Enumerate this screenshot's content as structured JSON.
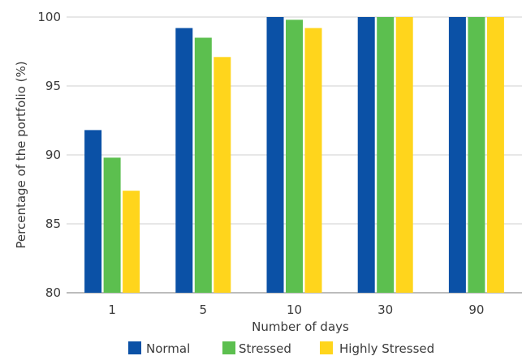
{
  "chart_data": {
    "type": "bar",
    "categories": [
      "1",
      "5",
      "10",
      "30",
      "90"
    ],
    "series": [
      {
        "name": "Normal",
        "color": "#0b51a6",
        "values": [
          91.8,
          99.2,
          100,
          100,
          100
        ]
      },
      {
        "name": "Stressed",
        "color": "#5cbf4f",
        "values": [
          89.8,
          98.5,
          99.8,
          100,
          100
        ]
      },
      {
        "name": "Highly Stressed",
        "color": "#ffd51c",
        "values": [
          87.4,
          97.1,
          99.2,
          100,
          100
        ]
      }
    ],
    "xlabel": "Number of days",
    "ylabel": "Percentage of the portfolio (%)",
    "ylim": [
      80,
      100
    ],
    "yticks": [
      "80",
      "85",
      "90",
      "95",
      "100"
    ],
    "grid": true,
    "legend_position": "bottom"
  }
}
